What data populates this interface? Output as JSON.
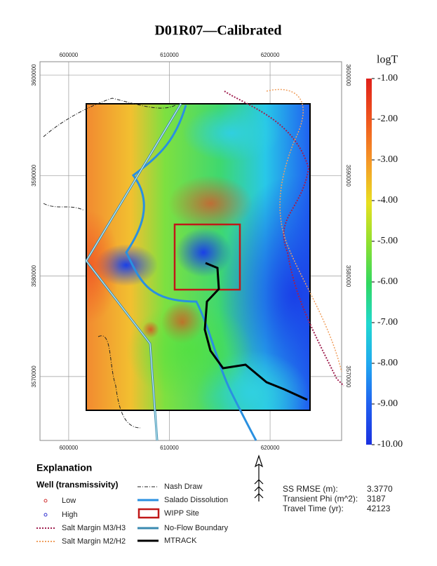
{
  "title": "D01R07—Calibrated",
  "map": {
    "xticks": [
      600000,
      610000,
      620000
    ],
    "yticks": [
      3600000,
      3590000,
      3580000,
      3570000
    ],
    "xlim": [
      597150,
      627100
    ],
    "ylim": [
      3563640,
      3601330
    ]
  },
  "colorbar": {
    "label": "logT",
    "lim": [
      -10,
      -1
    ],
    "ticks": [
      {
        "value": -1,
        "label": "-1.00"
      },
      {
        "value": -2,
        "label": "-2.00"
      },
      {
        "value": -3,
        "label": "-3.00"
      },
      {
        "value": -4,
        "label": "-4.00"
      },
      {
        "value": -5,
        "label": "-5.00"
      },
      {
        "value": -6,
        "label": "-6.00"
      },
      {
        "value": -7,
        "label": "-7.00"
      },
      {
        "value": -8,
        "label": "-8.00"
      },
      {
        "value": -9,
        "label": "-9.00"
      },
      {
        "value": -10,
        "label": "-10.00"
      }
    ]
  },
  "legend": {
    "heading": "Explanation",
    "subheading": "Well (transmissivity)",
    "items": [
      "Low",
      "High",
      "Salt Margin M3/H3",
      "Salt Margin M2/H2",
      "Nash Draw",
      "Salado Dissolution",
      "WIPP Site",
      "No-Flow Boundary",
      "MTRACK"
    ]
  },
  "stats": [
    {
      "label": "SS RMSE (m):",
      "value": "3.3770"
    },
    {
      "label": "Transient Phi (m^2):",
      "value": "3187"
    },
    {
      "label": "Travel Time (yr):",
      "value": "42123"
    }
  ]
}
